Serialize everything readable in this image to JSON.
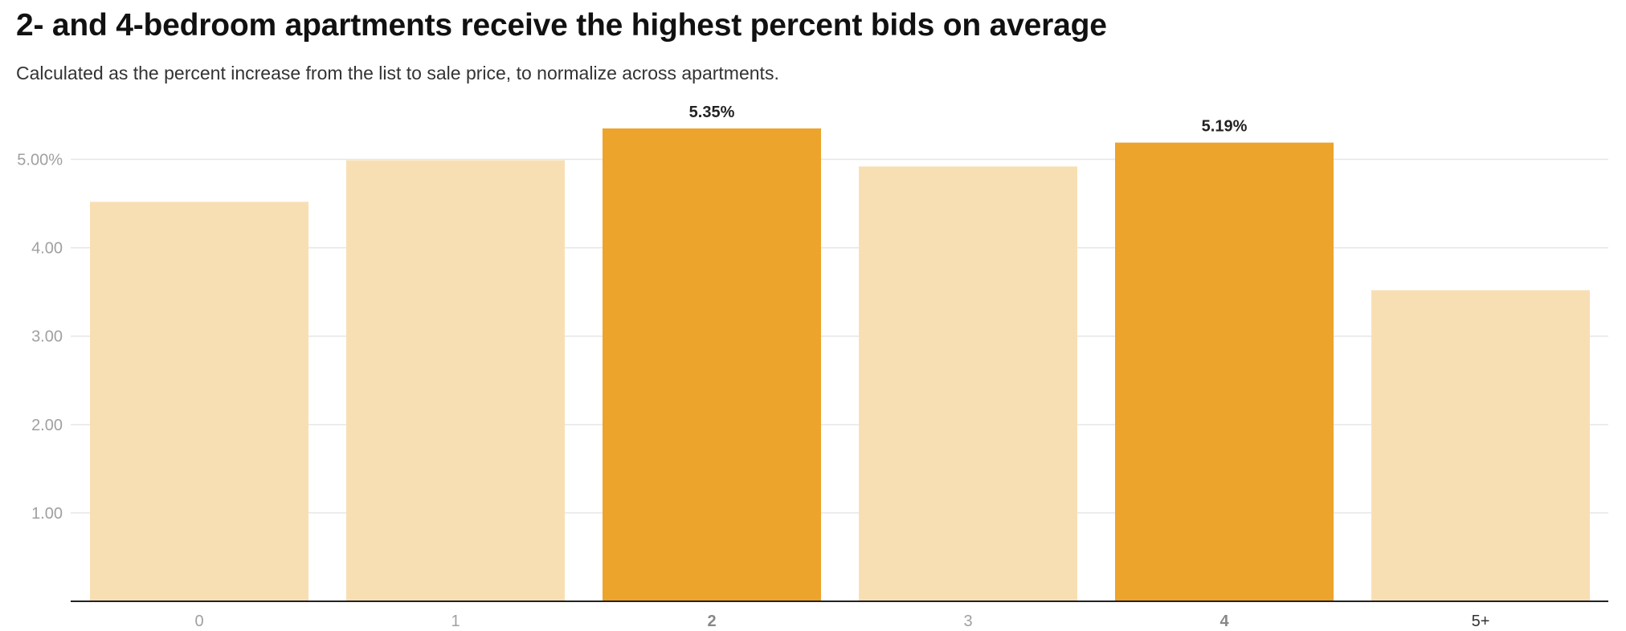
{
  "title": "2- and 4-bedroom apartments receive the highest percent bids on average",
  "subtitle": "Calculated as the percent increase from the list to sale price, to normalize across apartments.",
  "colors": {
    "highlight": "#eca42c",
    "muted": "#f8dfb3",
    "grid": "#e6e6e6",
    "axis": "#222222",
    "tick_text": "#a0a0a0",
    "highlight_label": "#888888",
    "dark_label": "#333333"
  },
  "chart_data": {
    "type": "bar",
    "categories": [
      "0",
      "1",
      "2",
      "3",
      "4",
      "5+"
    ],
    "values": [
      4.52,
      4.99,
      5.35,
      4.92,
      5.19,
      3.52
    ],
    "highlighted": [
      false,
      false,
      true,
      false,
      true,
      false
    ],
    "data_labels": [
      "",
      "",
      "5.35%",
      "",
      "5.19%",
      ""
    ],
    "category_label_style": [
      "normal",
      "normal",
      "bold",
      "normal",
      "bold",
      "dark"
    ],
    "y_ticks": [
      1,
      2,
      3,
      4,
      5
    ],
    "y_tick_labels": [
      "1.00",
      "2.00",
      "3.00",
      "4.00",
      "5.00%"
    ],
    "ylim": [
      0,
      5.35
    ],
    "grid": true,
    "legend": "none",
    "xlabel": "",
    "ylabel": ""
  }
}
